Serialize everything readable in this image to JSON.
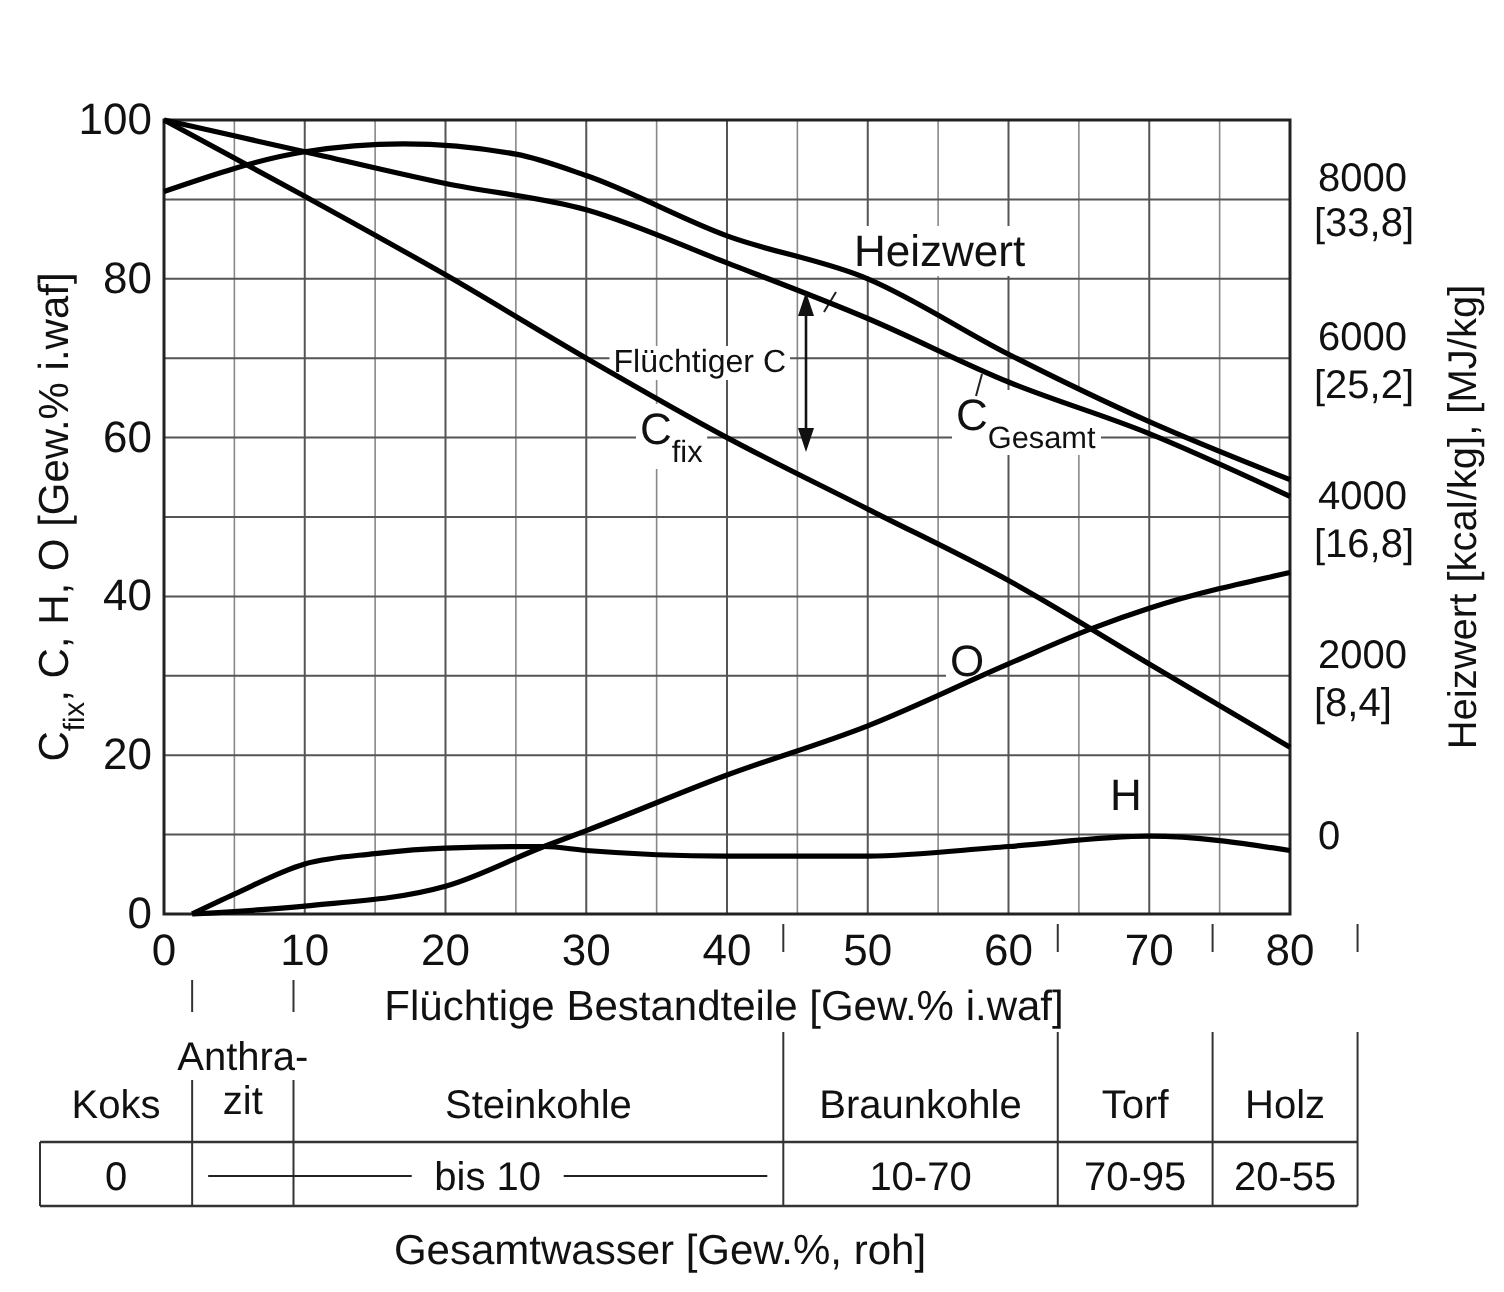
{
  "chart_data": {
    "type": "line",
    "xlabel": "Flüchtige Bestandteile [Gew.% i.waf]",
    "ylabel": "C$_{fix}$, C, H, O [Gew.% i.waf]",
    "y2label": "Heizwert [kcal/kg], [MJ/kg]",
    "xlim": [
      0,
      80
    ],
    "xticks": [
      0,
      10,
      20,
      30,
      40,
      50,
      60,
      70,
      80
    ],
    "ylim": [
      0,
      100
    ],
    "yticks": [
      0,
      20,
      40,
      60,
      80,
      100
    ],
    "y2lim": [
      -1000,
      9000
    ],
    "y2ticks": [
      0,
      2000,
      4000,
      6000,
      8000
    ],
    "y3lim": [
      -4.2,
      37.8
    ],
    "y3ticks": [
      {
        "value": 8.4,
        "label": "[8,4]"
      },
      {
        "value": 16.8,
        "label": "[16,8]"
      },
      {
        "value": 25.2,
        "label": "[25,2]"
      },
      {
        "value": 33.8,
        "label": "[33,8]"
      }
    ],
    "grid": true,
    "legend": false,
    "marker": "none",
    "line_style": "solid",
    "series": [
      {
        "name": "Heizwert",
        "color": "#000000",
        "axis": "y2",
        "x": [
          0,
          10,
          17,
          25,
          30,
          40,
          50,
          60,
          70,
          80
        ],
        "values": [
          8100,
          8600,
          8700,
          8570,
          8300,
          7540,
          7000,
          6050,
          5200,
          4470
        ]
      },
      {
        "name": "C$_{Gesamt}$",
        "color": "#000000",
        "x": [
          0,
          10,
          20,
          30,
          40,
          50,
          60,
          70,
          80
        ],
        "values": [
          100,
          96,
          92,
          88.7,
          82,
          75,
          67,
          60.5,
          52.6
        ]
      },
      {
        "name": "C$_{fix}$",
        "color": "#000000",
        "x": [
          0,
          10,
          20,
          30,
          40,
          50,
          60,
          70,
          80
        ],
        "values": [
          100,
          90.4,
          80.5,
          70,
          60,
          51,
          42,
          31.5,
          21
        ]
      },
      {
        "name": "O",
        "color": "#000000",
        "x": [
          2,
          10,
          20,
          27,
          30,
          40,
          50,
          60,
          66,
          70,
          80
        ],
        "values": [
          0,
          1,
          3.5,
          8.5,
          10.5,
          17.5,
          23.7,
          31.5,
          36,
          38.5,
          43
        ]
      },
      {
        "name": "H",
        "color": "#000000",
        "x": [
          2,
          5,
          10,
          15,
          20,
          27,
          30,
          40,
          50,
          60,
          70,
          80
        ],
        "values": [
          0,
          2.5,
          6.3,
          7.6,
          8.3,
          8.5,
          8,
          7.3,
          7.3,
          8.5,
          9.8,
          8
        ]
      }
    ],
    "annotations": [
      "Flüchtiger C",
      "Koks",
      "Anthra-\nzit",
      "Steinkohle",
      "Braunkohle",
      "Torf",
      "Holz",
      "0",
      "bis 10",
      "10-70",
      "70-95",
      "20-55",
      "Gesamtwasser [Gew.%, roh]"
    ]
  }
}
